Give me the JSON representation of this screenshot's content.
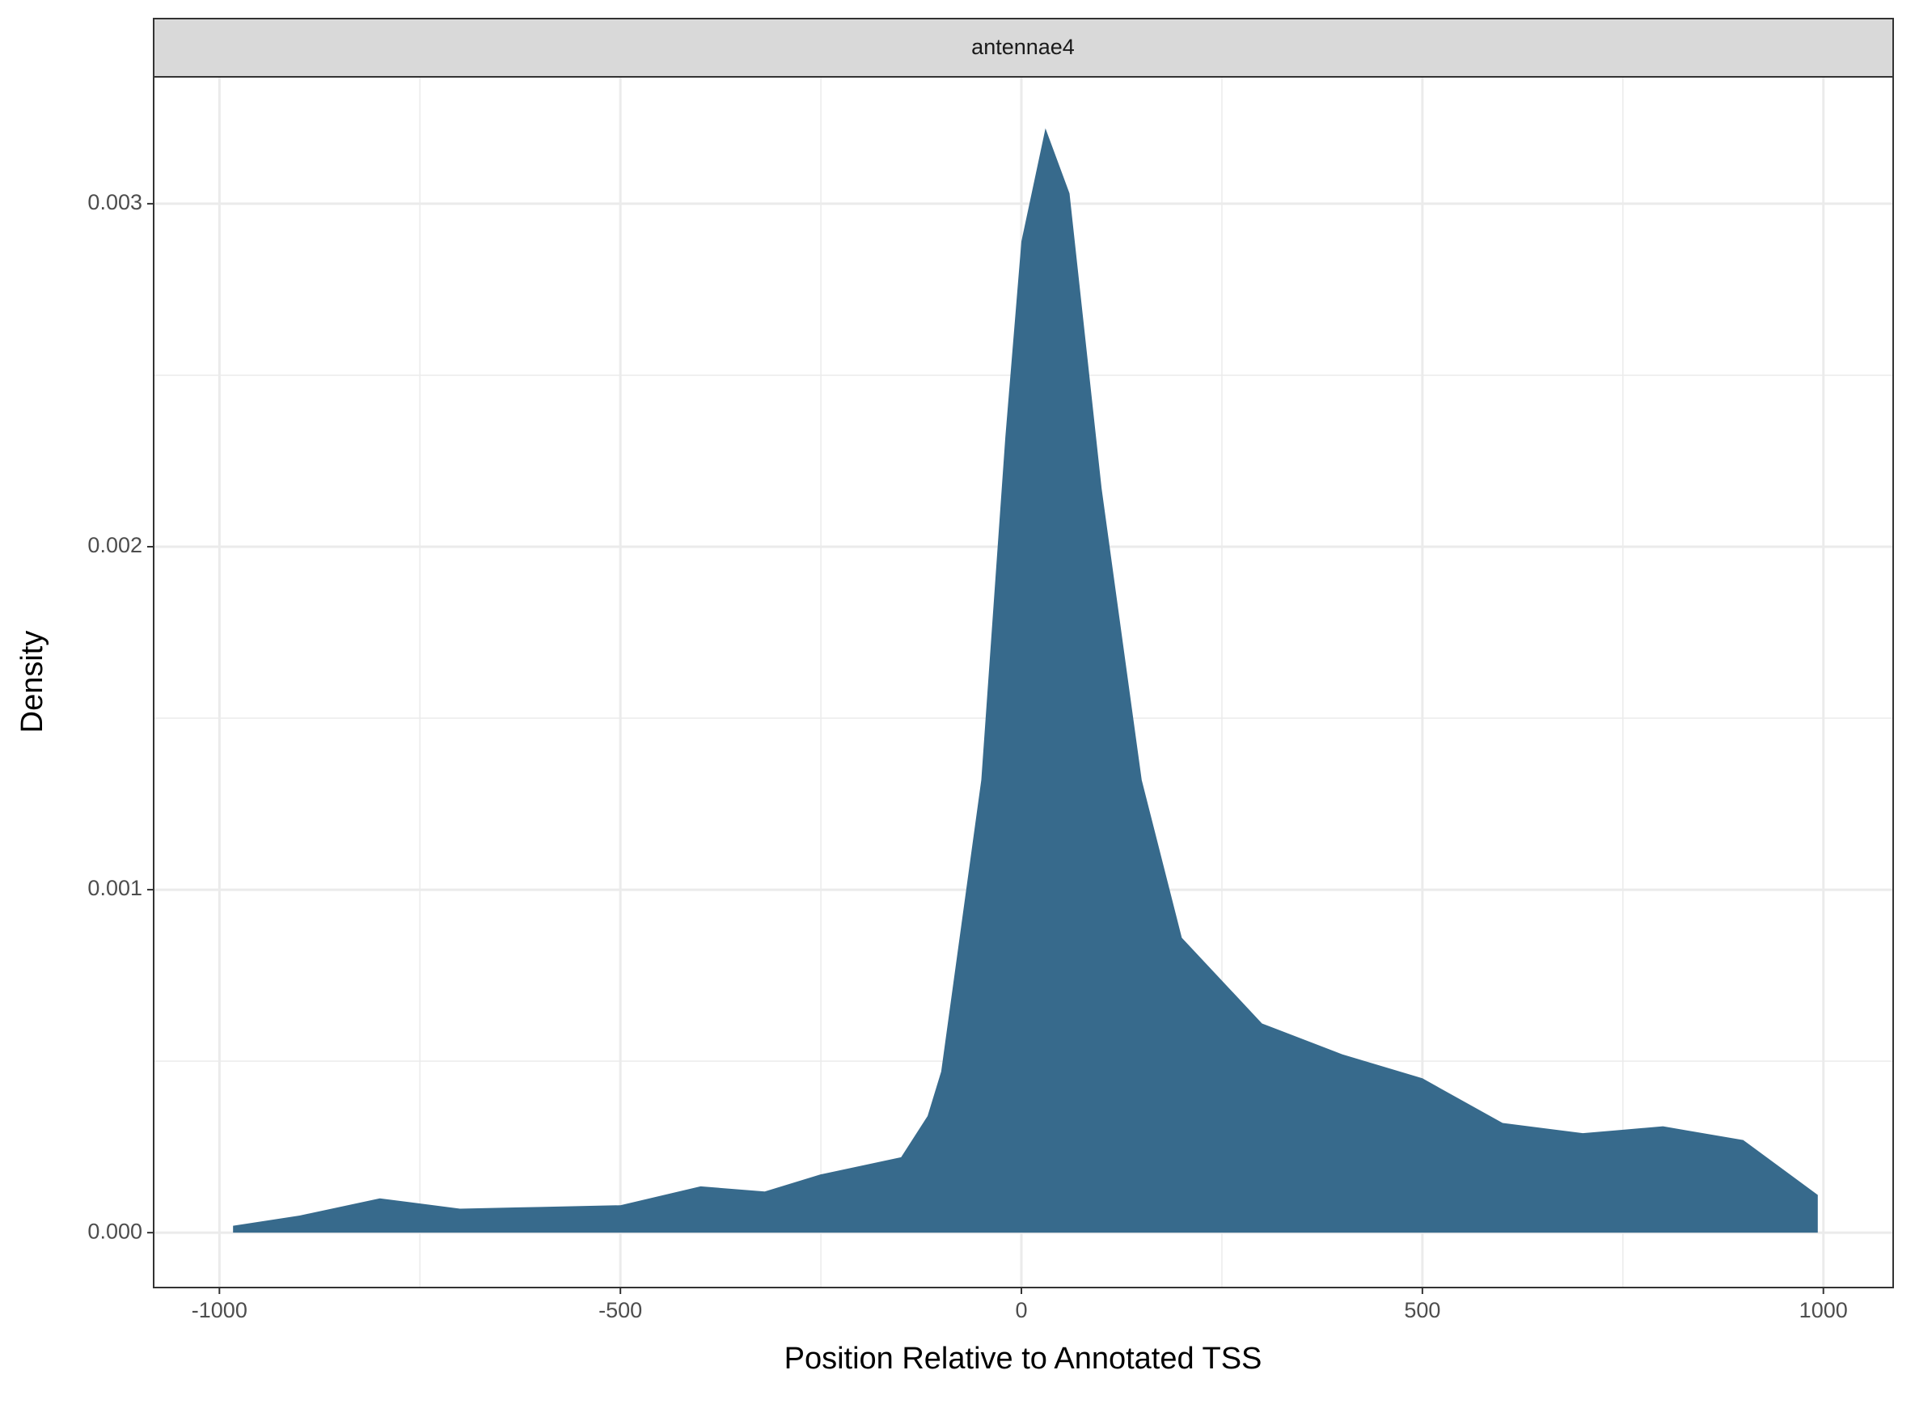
{
  "chart_data": {
    "type": "area",
    "facet": "antennae4",
    "x_label": "Position Relative to Annotated TSS",
    "y_label": "Density",
    "color": "#376a8c",
    "grid": true,
    "x": [
      -983,
      -900,
      -800,
      -700,
      -600,
      -500,
      -400,
      -320,
      -250,
      -150,
      -117,
      -100,
      -50,
      -20,
      0,
      30,
      60,
      100,
      150,
      200,
      300,
      400,
      500,
      600,
      700,
      800,
      900,
      993
    ],
    "values": [
      2e-05,
      5e-05,
      0.0001,
      7e-05,
      7.5e-05,
      8e-05,
      0.000135,
      0.00012,
      0.00017,
      0.00022,
      0.00034,
      0.00047,
      0.00132,
      0.00232,
      0.00289,
      0.00322,
      0.00303,
      0.00217,
      0.00132,
      0.00086,
      0.00061,
      0.00052,
      0.00045,
      0.00032,
      0.00029,
      0.00031,
      0.00027,
      0.00011
    ],
    "xlim": [
      -1082,
      1087
    ],
    "xticks": [
      -1000,
      -500,
      0,
      500,
      1000
    ],
    "xminor": [
      -750,
      -250,
      250,
      750
    ],
    "ylim": [
      -0.00016,
      0.00337
    ],
    "yticks": [
      {
        "value": 0,
        "label": "0.000"
      },
      0.001,
      0.002,
      0.003
    ],
    "yminor": [
      0.0005,
      0.0015,
      0.0025
    ]
  }
}
